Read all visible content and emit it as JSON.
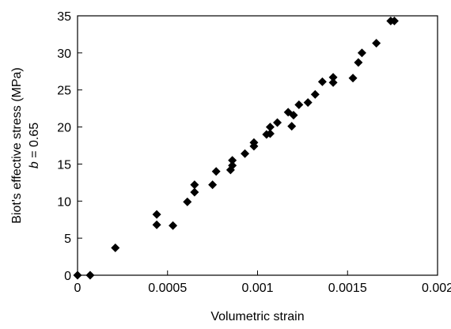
{
  "chart_data": {
    "type": "scatter",
    "xlabel": "Volumetric strain",
    "ylabel_line1": "Biot's effective stress (MPa)",
    "ylabel_line2_var": "b",
    "ylabel_line2_rest": " = 0.65",
    "xlim": [
      0,
      0.002
    ],
    "ylim": [
      0,
      35
    ],
    "x_ticks": [
      0,
      0.0005,
      0.001,
      0.0015,
      0.002
    ],
    "x_tick_labels": [
      "0",
      "0.0005",
      "0.001",
      "0.0015",
      "0.002"
    ],
    "y_ticks": [
      0,
      5,
      10,
      15,
      20,
      25,
      30,
      35
    ],
    "y_tick_labels": [
      "0",
      "5",
      "10",
      "15",
      "20",
      "25",
      "30",
      "35"
    ],
    "grid": false,
    "marker": "diamond",
    "colors": {
      "marker": "#000000",
      "axis": "#000000"
    },
    "points": [
      {
        "x": 0.0,
        "y": 0.0
      },
      {
        "x": 7e-05,
        "y": 0.0
      },
      {
        "x": 0.00021,
        "y": 3.7
      },
      {
        "x": 0.00044,
        "y": 6.8
      },
      {
        "x": 0.00044,
        "y": 8.2
      },
      {
        "x": 0.00053,
        "y": 6.7
      },
      {
        "x": 0.00061,
        "y": 9.9
      },
      {
        "x": 0.00065,
        "y": 11.2
      },
      {
        "x": 0.00065,
        "y": 12.2
      },
      {
        "x": 0.00075,
        "y": 12.2
      },
      {
        "x": 0.00077,
        "y": 14.0
      },
      {
        "x": 0.00085,
        "y": 14.2
      },
      {
        "x": 0.00086,
        "y": 14.8
      },
      {
        "x": 0.00086,
        "y": 15.5
      },
      {
        "x": 0.00093,
        "y": 16.4
      },
      {
        "x": 0.00098,
        "y": 17.4
      },
      {
        "x": 0.00098,
        "y": 17.9
      },
      {
        "x": 0.00105,
        "y": 19.0
      },
      {
        "x": 0.00107,
        "y": 19.1
      },
      {
        "x": 0.00107,
        "y": 20.0
      },
      {
        "x": 0.00111,
        "y": 20.6
      },
      {
        "x": 0.00117,
        "y": 22.0
      },
      {
        "x": 0.00119,
        "y": 20.1
      },
      {
        "x": 0.0012,
        "y": 21.6
      },
      {
        "x": 0.00123,
        "y": 23.0
      },
      {
        "x": 0.00128,
        "y": 23.3
      },
      {
        "x": 0.00132,
        "y": 24.4
      },
      {
        "x": 0.00136,
        "y": 26.1
      },
      {
        "x": 0.00142,
        "y": 26.0
      },
      {
        "x": 0.00142,
        "y": 26.7
      },
      {
        "x": 0.00153,
        "y": 26.6
      },
      {
        "x": 0.00156,
        "y": 28.7
      },
      {
        "x": 0.00158,
        "y": 30.0
      },
      {
        "x": 0.00166,
        "y": 31.3
      },
      {
        "x": 0.00174,
        "y": 34.3
      },
      {
        "x": 0.00176,
        "y": 34.3
      }
    ]
  }
}
